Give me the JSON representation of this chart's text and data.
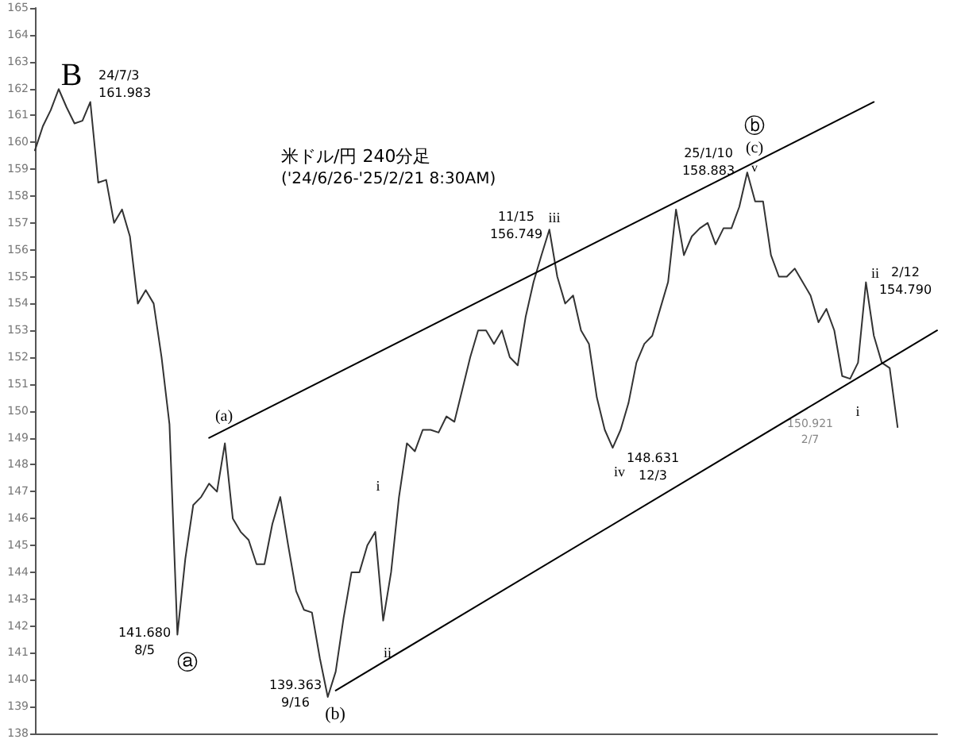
{
  "chart_data": {
    "type": "line",
    "title": "米ドル/円 240分足",
    "subtitle": "('24/6/26-'25/2/21 8:30AM)",
    "categories": [
      null,
      null,
      null,
      null,
      null,
      null,
      null,
      null,
      null,
      null,
      null,
      null,
      null,
      null,
      null,
      null,
      null,
      null,
      null,
      null,
      null,
      null,
      null,
      null,
      null,
      null,
      null,
      null,
      null,
      null,
      null,
      null,
      null,
      null,
      null,
      null,
      null,
      null,
      null,
      null,
      null,
      null,
      null,
      null,
      null,
      null,
      null,
      null,
      null,
      null,
      null,
      null,
      null,
      null,
      null,
      null,
      null,
      null,
      null,
      null,
      null,
      null,
      null,
      null,
      null,
      null,
      null,
      null,
      null,
      null,
      null,
      null,
      null,
      null,
      null,
      null,
      null,
      null,
      null,
      null,
      null,
      null,
      null,
      null,
      null,
      null,
      null,
      null,
      null,
      null,
      null,
      null,
      null,
      null,
      null,
      null,
      null,
      null,
      null,
      null,
      null,
      null,
      null,
      null,
      null,
      null,
      null,
      null,
      null,
      null,
      null,
      null,
      null,
      null,
      null
    ],
    "series": [
      {
        "color": "#333333",
        "values": [
          159.7,
          160.6,
          161.2,
          161.98,
          161.3,
          160.7,
          160.8,
          161.5,
          158.5,
          158.6,
          157.0,
          157.5,
          156.5,
          154.0,
          154.5,
          154.0,
          152.0,
          149.5,
          141.68,
          144.5,
          146.5,
          146.8,
          147.3,
          147.0,
          148.8,
          146.0,
          145.5,
          145.2,
          144.3,
          144.3,
          145.8,
          146.8,
          145.0,
          143.3,
          142.6,
          142.5,
          140.8,
          139.36,
          140.3,
          142.3,
          144.0,
          144.0,
          145.0,
          145.5,
          142.2,
          144.0,
          146.8,
          148.8,
          148.5,
          149.3,
          149.3,
          149.2,
          149.8,
          149.6,
          150.8,
          152.0,
          153.0,
          153.0,
          152.5,
          153.0,
          152.0,
          151.7,
          153.5,
          154.8,
          155.8,
          156.75,
          155.0,
          154.0,
          154.3,
          153.0,
          152.5,
          150.5,
          149.3,
          148.63,
          149.3,
          150.3,
          151.8,
          152.5,
          152.8,
          153.8,
          154.8,
          157.5,
          155.8,
          156.5,
          156.8,
          157.0,
          156.2,
          156.8,
          156.8,
          157.6,
          158.88,
          157.8,
          157.8,
          155.8,
          155.0,
          155.0,
          155.3,
          154.8,
          154.3,
          153.3,
          153.8,
          153.0,
          151.3,
          151.2,
          151.8,
          154.79,
          152.8,
          151.8,
          151.6,
          149.4,
          null,
          null,
          null,
          null,
          null
        ]
      },
      {
        "color": "#000000",
        "values": [
          null,
          null,
          null,
          null,
          null,
          null,
          null,
          null,
          null,
          null,
          null,
          null,
          null,
          null,
          null,
          null,
          null,
          null,
          null,
          null,
          null,
          null,
          149.0,
          null,
          null,
          null,
          null,
          null,
          null,
          null,
          null,
          null,
          null,
          null,
          null,
          null,
          null,
          null,
          null,
          null,
          null,
          null,
          null,
          null,
          null,
          null,
          null,
          null,
          null,
          null,
          null,
          null,
          null,
          null,
          null,
          null,
          null,
          null,
          null,
          null,
          null,
          null,
          null,
          null,
          null,
          null,
          null,
          null,
          null,
          null,
          null,
          null,
          null,
          null,
          null,
          null,
          null,
          null,
          null,
          null,
          null,
          null,
          null,
          null,
          null,
          null,
          null,
          null,
          null,
          null,
          null,
          null,
          null,
          null,
          null,
          null,
          null,
          null,
          null,
          null,
          null,
          null,
          null,
          null,
          null,
          null,
          161.5,
          null,
          null,
          null,
          null,
          null,
          null,
          null,
          null
        ]
      },
      {
        "color": "#000000",
        "values": [
          null,
          null,
          null,
          null,
          null,
          null,
          null,
          null,
          null,
          null,
          null,
          null,
          null,
          null,
          null,
          null,
          null,
          null,
          null,
          null,
          null,
          null,
          null,
          null,
          null,
          null,
          null,
          null,
          null,
          null,
          null,
          null,
          null,
          null,
          null,
          null,
          null,
          null,
          139.6,
          null,
          null,
          null,
          null,
          null,
          null,
          null,
          null,
          null,
          null,
          null,
          null,
          null,
          null,
          null,
          null,
          null,
          null,
          null,
          null,
          null,
          null,
          null,
          null,
          null,
          null,
          null,
          null,
          null,
          null,
          null,
          null,
          null,
          null,
          null,
          null,
          null,
          null,
          null,
          null,
          null,
          null,
          null,
          null,
          null,
          null,
          null,
          null,
          null,
          null,
          null,
          null,
          null,
          null,
          null,
          null,
          null,
          null,
          null,
          null,
          null,
          null,
          null,
          null,
          null,
          null,
          null,
          null,
          null,
          null,
          null,
          null,
          null,
          null,
          null,
          153.0
        ]
      }
    ],
    "ylim": [
      138,
      165
    ],
    "yticks": [
      138,
      139,
      140,
      141,
      142,
      143,
      144,
      145,
      146,
      147,
      148,
      149,
      150,
      151,
      152,
      153,
      154,
      155,
      156,
      157,
      158,
      159,
      160,
      161,
      162,
      163,
      164,
      165
    ],
    "tick_labels": "y",
    "line_style": "solid",
    "annotations": [
      "B",
      "24/7/3\n161.983",
      "(a)",
      "141.680\n8/5",
      "ⓐ",
      "139.363\n9/16",
      "(b)",
      "i",
      "ii",
      "11/15\n156.749",
      "iii",
      "iv",
      "148.631\n12/3",
      "25/1/10\n158.883",
      "ⓑ",
      "(c)",
      "v",
      "ii",
      "2/12\n154.790",
      "150.921\n2/7",
      "i"
    ]
  }
}
